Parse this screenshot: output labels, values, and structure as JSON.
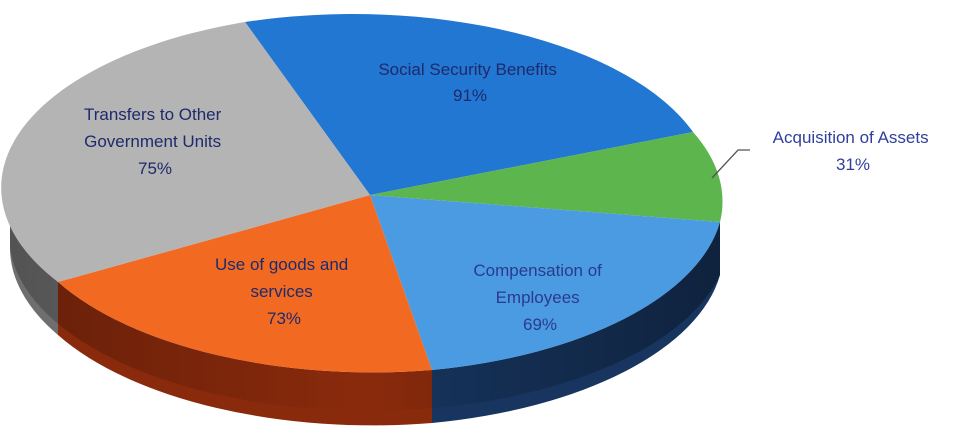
{
  "chart_data": {
    "type": "pie",
    "style": "3d",
    "title": "",
    "slices": [
      {
        "name": "Social Security Benefits",
        "value_label": "91%",
        "color": "#2277d2"
      },
      {
        "name": "Acquisition of Assets",
        "value_label": "31%",
        "color": "#5cb54d"
      },
      {
        "name": "Compensation of Employees",
        "value_label": "69%",
        "color": "#4b9be2"
      },
      {
        "name": "Use of goods and services",
        "value_label": "73%",
        "color": "#f26a22"
      },
      {
        "name": "Transfers to Other Government Units",
        "value_label": "75%",
        "color": "#b4b4b4"
      }
    ],
    "side_colors": [
      "#1a4e8a",
      "#2d6a2d",
      "#17355f",
      "#8a2a0c",
      "#6f6f6f"
    ],
    "labels": {
      "social_security": [
        "Social Security Benefits",
        "91%"
      ],
      "acquisition": [
        "Acquisition of Assets",
        "31%"
      ],
      "compensation": [
        "Compensation of",
        "Employees",
        "69%"
      ],
      "use_goods": [
        "Use of goods and",
        "services",
        "73%"
      ],
      "transfers": [
        "Transfers to Other",
        "Government Units",
        "75%"
      ]
    }
  }
}
